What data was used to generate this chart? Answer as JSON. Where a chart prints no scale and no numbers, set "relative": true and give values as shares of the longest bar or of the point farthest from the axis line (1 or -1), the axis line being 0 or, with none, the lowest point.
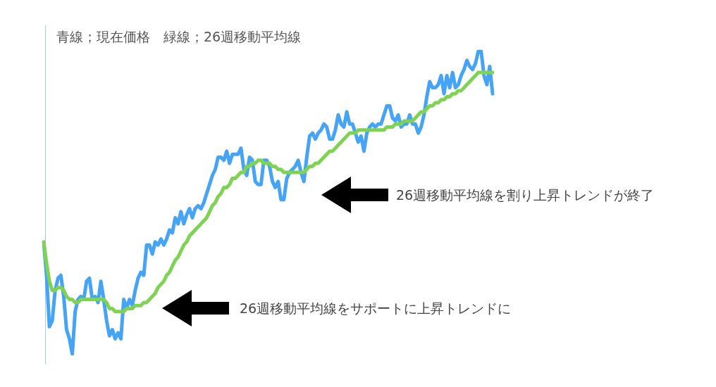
{
  "chart_data": {
    "type": "line",
    "title": "青線；現在価格　緑線；26週移動平均線",
    "relative": true,
    "categories": [
      null,
      null,
      null,
      null,
      null,
      null,
      null,
      null,
      null,
      null,
      null,
      null,
      null,
      null,
      null,
      null,
      null,
      null,
      null,
      null,
      null,
      null,
      null,
      null,
      null,
      null,
      null,
      null,
      null,
      null,
      null,
      null,
      null,
      null,
      null,
      null,
      null,
      null,
      null,
      null,
      null,
      null,
      null,
      null,
      null,
      null,
      null,
      null,
      null,
      null,
      null,
      null,
      null,
      null,
      null,
      null,
      null,
      null,
      null,
      null,
      null,
      null,
      null,
      null,
      null,
      null,
      null,
      null,
      null,
      null,
      null,
      null,
      null,
      null,
      null,
      null,
      null,
      null,
      null,
      null,
      null,
      null,
      null,
      null,
      null,
      null,
      null,
      null,
      null,
      null,
      null,
      null,
      null,
      null,
      null,
      null,
      null,
      null,
      null,
      null,
      null,
      null,
      null,
      null,
      null,
      null,
      null,
      null,
      null,
      null,
      null,
      null,
      null,
      null,
      null,
      null,
      null,
      null,
      null,
      null,
      null,
      null,
      null,
      null,
      null,
      null,
      null,
      null,
      null,
      null,
      null,
      null,
      null,
      null,
      null,
      null,
      null,
      null,
      null,
      null,
      null,
      null,
      null,
      null,
      null,
      null,
      null,
      null,
      null,
      null,
      null,
      null,
      null,
      null,
      null,
      null,
      null,
      null
    ],
    "series": [
      {
        "color": "#45a4f5",
        "values": [
          0.37,
          0.26,
          0.09,
          0.11,
          0.21,
          0.25,
          0.26,
          0.19,
          0.08,
          0.05,
          0,
          0.14,
          0.18,
          0.19,
          0.18,
          0.24,
          0.25,
          0.18,
          0.19,
          0.17,
          0.24,
          0.18,
          0.11,
          0.06,
          0.08,
          0.05,
          0.07,
          0.05,
          0.18,
          0.15,
          0.18,
          0.16,
          0.21,
          0.25,
          0.27,
          0.26,
          0.36,
          0.36,
          0.33,
          0.37,
          0.36,
          0.38,
          0.36,
          0.38,
          0.41,
          0.4,
          0.45,
          0.43,
          0.47,
          0.43,
          0.46,
          0.48,
          0.45,
          0.48,
          0.49,
          0.48,
          0.5,
          0.53,
          0.56,
          0.59,
          0.61,
          0.65,
          0.65,
          0.64,
          0.67,
          0.63,
          0.66,
          0.66,
          0.66,
          0.68,
          0.61,
          0.59,
          0.65,
          0.64,
          0.57,
          0.56,
          0.56,
          0.64,
          0.64,
          0.62,
          0.57,
          0.55,
          0.57,
          0.51,
          0.51,
          0.58,
          0.6,
          0.61,
          0.62,
          0.64,
          0.6,
          0.57,
          0.65,
          0.72,
          0.73,
          0.71,
          0.73,
          0.74,
          0.76,
          0.75,
          0.71,
          0.71,
          0.74,
          0.79,
          0.76,
          0.75,
          0.8,
          0.76,
          0.76,
          0.73,
          0.7,
          0.72,
          0.67,
          0.73,
          0.75,
          0.76,
          0.75,
          0.76,
          0.76,
          0.79,
          0.82,
          0.82,
          0.78,
          0.77,
          0.79,
          0.75,
          0.76,
          0.76,
          0.79,
          0.76,
          0.76,
          0.73,
          0.75,
          0.79,
          0.85,
          0.9,
          0.88,
          0.88,
          0.89,
          0.92,
          0.86,
          0.92,
          0.88,
          0.93,
          0.88,
          0.89,
          0.92,
          0.94,
          0.97,
          0.95,
          0.94,
          0.96,
          1.0,
          1.0,
          0.92,
          0.89,
          0.95,
          0.86
        ]
      },
      {
        "color": "#7ed353",
        "values": [
          0.37,
          0.3,
          0.24,
          0.21,
          0.21,
          0.22,
          0.22,
          0.21,
          0.19,
          0.18,
          0.18,
          0.17,
          0.17,
          0.18,
          0.18,
          0.18,
          0.18,
          0.18,
          0.18,
          0.18,
          0.18,
          0.18,
          0.17,
          0.15,
          0.15,
          0.14,
          0.14,
          0.14,
          0.14,
          0.15,
          0.15,
          0.15,
          0.16,
          0.16,
          0.16,
          0.17,
          0.17,
          0.18,
          0.19,
          0.2,
          0.22,
          0.23,
          0.24,
          0.26,
          0.27,
          0.29,
          0.31,
          0.32,
          0.34,
          0.36,
          0.37,
          0.39,
          0.4,
          0.41,
          0.42,
          0.43,
          0.44,
          0.45,
          0.47,
          0.49,
          0.5,
          0.52,
          0.53,
          0.55,
          0.55,
          0.56,
          0.58,
          0.58,
          0.59,
          0.6,
          0.6,
          0.62,
          0.62,
          0.63,
          0.63,
          0.64,
          0.64,
          0.63,
          0.63,
          0.63,
          0.62,
          0.62,
          0.61,
          0.61,
          0.6,
          0.6,
          0.6,
          0.6,
          0.6,
          0.6,
          0.6,
          0.6,
          0.61,
          0.62,
          0.62,
          0.63,
          0.63,
          0.64,
          0.65,
          0.66,
          0.67,
          0.67,
          0.68,
          0.69,
          0.7,
          0.71,
          0.72,
          0.73,
          0.73,
          0.73,
          0.74,
          0.74,
          0.74,
          0.74,
          0.74,
          0.74,
          0.74,
          0.74,
          0.74,
          0.74,
          0.75,
          0.75,
          0.75,
          0.76,
          0.76,
          0.76,
          0.77,
          0.77,
          0.77,
          0.77,
          0.78,
          0.79,
          0.8,
          0.8,
          0.81,
          0.82,
          0.82,
          0.83,
          0.83,
          0.84,
          0.84,
          0.85,
          0.85,
          0.86,
          0.86,
          0.87,
          0.87,
          0.88,
          0.89,
          0.9,
          0.91,
          0.92,
          0.93,
          0.93,
          0.93,
          0.93,
          0.93,
          0.93
        ]
      }
    ],
    "annotations": [
      "26週移動平均線を割り上昇トレンドが終了",
      "26週移動平均線をサポートに上昇トレンドに"
    ]
  }
}
